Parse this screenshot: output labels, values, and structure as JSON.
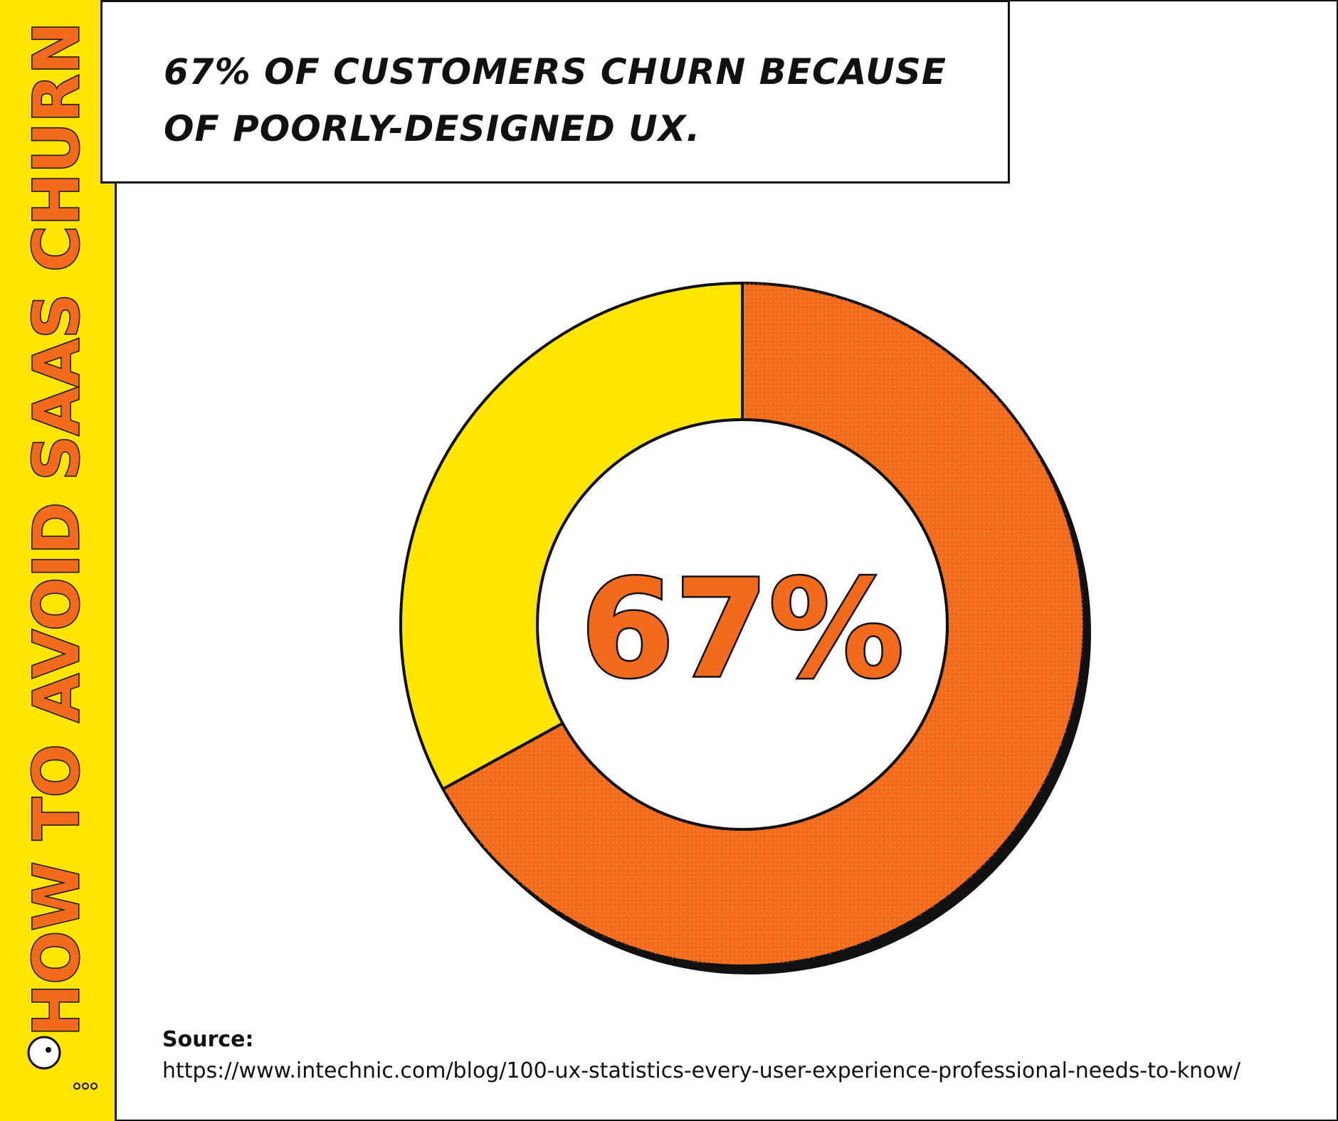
{
  "chart_data": {
    "type": "pie",
    "donut": true,
    "title": "67% OF CUSTOMERS CHURN BECAUSE OF POORLY-DESIGNED UX.",
    "side_title": "HOW TO AVOID SAAS CHURN",
    "values": [
      67,
      33
    ],
    "value_labels": [
      "67%",
      null
    ],
    "colors": [
      "#f26a1b",
      "#ffe500"
    ],
    "source_label": "Source:",
    "source_url": "https://www.intechnic.com/blog/100-ux-statistics-every-user-experience-professional-needs-to-know/"
  }
}
